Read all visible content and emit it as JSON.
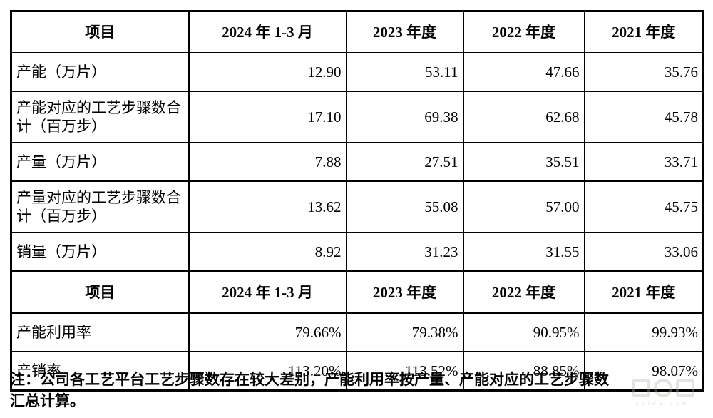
{
  "table": {
    "sections": [
      {
        "header": [
          "项目",
          "2024 年 1-3 月",
          "2023 年度",
          "2022 年度",
          "2021 年度"
        ],
        "rows": [
          {
            "label": "产能（万片）",
            "values": [
              "12.90",
              "53.11",
              "47.66",
              "35.76"
            ]
          },
          {
            "label": "产能对应的工艺步骤数合计（百万步）",
            "values": [
              "17.10",
              "69.38",
              "62.68",
              "45.78"
            ]
          },
          {
            "label": "产量（万片）",
            "values": [
              "7.88",
              "27.51",
              "35.51",
              "33.71"
            ]
          },
          {
            "label": "产量对应的工艺步骤数合计（百万步）",
            "values": [
              "13.62",
              "55.08",
              "57.00",
              "45.75"
            ]
          },
          {
            "label": "销量（万片）",
            "values": [
              "8.92",
              "31.23",
              "31.55",
              "33.06"
            ]
          }
        ]
      },
      {
        "header": [
          "项目",
          "2024 年 1-3 月",
          "2023 年度",
          "2022 年度",
          "2021 年度"
        ],
        "rows": [
          {
            "label": "产能利用率",
            "values": [
              "79.66%",
              "79.38%",
              "90.95%",
              "99.93%"
            ]
          },
          {
            "label": "产销率",
            "values": [
              "113.20%",
              "113.52%",
              "88.85%",
              "98.07%"
            ]
          }
        ]
      }
    ]
  },
  "note": {
    "line1": "注：公司各工艺平台工艺步骤数存在较大差别，产能利用率按产量、产能对应的工艺步骤数",
    "line2": "汇总计算。"
  },
  "watermark": {
    "caption": "zhida.com"
  },
  "colors": {
    "border": "#000000",
    "text": "#000000",
    "watermark": "#b9ada0",
    "background": "#ffffff"
  },
  "chart_data": {
    "type": "table",
    "columns": [
      "项目",
      "2024 年 1-3 月",
      "2023 年度",
      "2022 年度",
      "2021 年度"
    ],
    "rows": [
      [
        "产能（万片）",
        12.9,
        53.11,
        47.66,
        35.76
      ],
      [
        "产能对应的工艺步骤数合计（百万步）",
        17.1,
        69.38,
        62.68,
        45.78
      ],
      [
        "产量（万片）",
        7.88,
        27.51,
        35.51,
        33.71
      ],
      [
        "产量对应的工艺步骤数合计（百万步）",
        13.62,
        55.08,
        57.0,
        45.75
      ],
      [
        "销量（万片）",
        8.92,
        31.23,
        31.55,
        33.06
      ],
      [
        "产能利用率",
        "79.66%",
        "79.38%",
        "90.95%",
        "99.93%"
      ],
      [
        "产销率",
        "113.20%",
        "113.52%",
        "88.85%",
        "98.07%"
      ]
    ]
  }
}
